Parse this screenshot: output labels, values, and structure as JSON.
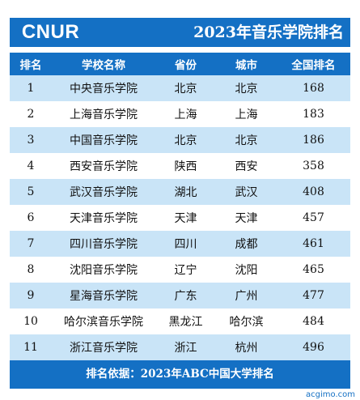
{
  "logo": "CNUR",
  "title": "2023年音乐学院排名",
  "columns": [
    "排名",
    "学校名称",
    "省份",
    "城市",
    "全国排名"
  ],
  "rows": [
    [
      "1",
      "中央音乐学院",
      "北京",
      "北京",
      "168"
    ],
    [
      "2",
      "上海音乐学院",
      "上海",
      "上海",
      "183"
    ],
    [
      "3",
      "中国音乐学院",
      "北京",
      "北京",
      "186"
    ],
    [
      "4",
      "西安音乐学院",
      "陕西",
      "西安",
      "358"
    ],
    [
      "5",
      "武汉音乐学院",
      "湖北",
      "武汉",
      "408"
    ],
    [
      "6",
      "天津音乐学院",
      "天津",
      "天津",
      "457"
    ],
    [
      "7",
      "四川音乐学院",
      "四川",
      "成都",
      "461"
    ],
    [
      "8",
      "沈阳音乐学院",
      "辽宁",
      "沈阳",
      "465"
    ],
    [
      "9",
      "星海音乐学院",
      "广东",
      "广州",
      "477"
    ],
    [
      "10",
      "哈尔滨音乐学院",
      "黑龙江",
      "哈尔滨",
      "484"
    ],
    [
      "11",
      "浙江音乐学院",
      "浙江",
      "杭州",
      "496"
    ]
  ],
  "footer": "排名依据：2023年ABC中国大学排名",
  "watermark": "acgimo.com",
  "colors": {
    "accent": "#1470c4",
    "stripe": "#c9e4f7"
  }
}
